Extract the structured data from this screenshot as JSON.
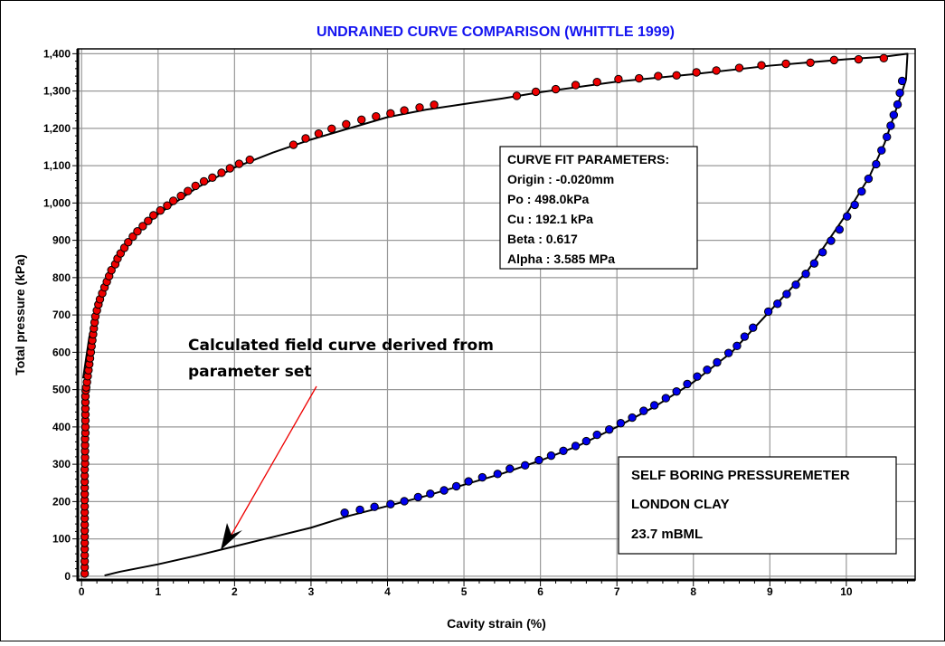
{
  "chart_data": {
    "type": "scatter",
    "title": "UNDRAINED CURVE COMPARISON (WHITTLE 1999)",
    "xlabel": "Cavity strain (%)",
    "ylabel": "Total pressure (kPa)",
    "xlim": [
      -0.05,
      10.9
    ],
    "ylim": [
      -10,
      1413
    ],
    "grid": true,
    "x_ticks": [
      0,
      1,
      2,
      3,
      4,
      5,
      6,
      7,
      8,
      9,
      10
    ],
    "x_tick_labels": [
      "0",
      "1",
      "2",
      "3",
      "4",
      "5",
      "6",
      "7",
      "8",
      "9",
      "10"
    ],
    "y_ticks": [
      0,
      100,
      200,
      300,
      400,
      500,
      600,
      700,
      800,
      900,
      1000,
      1100,
      1200,
      1300,
      1400
    ],
    "y_tick_labels": [
      "0",
      "100",
      "200",
      "300",
      "400",
      "500",
      "600",
      "700",
      "800",
      "900",
      "1,000",
      "1,100",
      "1,200",
      "1,300",
      "1,400"
    ],
    "colors": {
      "title": "#1414f0",
      "loading": "#ee0000",
      "unloading": "#0000ee",
      "curve": "#000000",
      "arrow": "#ee0000"
    },
    "series": [
      {
        "marker": "circle",
        "color": "#ee0000",
        "points": [
          [
            0.04,
            7
          ],
          [
            0.04,
            24
          ],
          [
            0.04,
            40
          ],
          [
            0.04,
            56
          ],
          [
            0.04,
            73
          ],
          [
            0.04,
            89
          ],
          [
            0.04,
            106
          ],
          [
            0.04,
            122
          ],
          [
            0.04,
            138
          ],
          [
            0.04,
            155
          ],
          [
            0.04,
            171
          ],
          [
            0.04,
            187
          ],
          [
            0.04,
            204
          ],
          [
            0.04,
            220
          ],
          [
            0.04,
            237
          ],
          [
            0.04,
            253
          ],
          [
            0.04,
            269
          ],
          [
            0.04,
            286
          ],
          [
            0.045,
            302
          ],
          [
            0.045,
            318
          ],
          [
            0.045,
            335
          ],
          [
            0.045,
            351
          ],
          [
            0.045,
            368
          ],
          [
            0.05,
            384
          ],
          [
            0.05,
            400
          ],
          [
            0.05,
            417
          ],
          [
            0.05,
            433
          ],
          [
            0.05,
            449
          ],
          [
            0.05,
            466
          ],
          [
            0.05,
            482
          ],
          [
            0.055,
            498
          ],
          [
            0.06,
            506
          ],
          [
            0.07,
            520
          ],
          [
            0.08,
            536
          ],
          [
            0.09,
            552
          ],
          [
            0.1,
            568
          ],
          [
            0.11,
            584
          ],
          [
            0.12,
            600
          ],
          [
            0.13,
            616
          ],
          [
            0.14,
            632
          ],
          [
            0.15,
            648
          ],
          [
            0.16,
            664
          ],
          [
            0.17,
            680
          ],
          [
            0.18,
            696
          ],
          [
            0.2,
            712
          ],
          [
            0.22,
            728
          ],
          [
            0.24,
            742
          ],
          [
            0.27,
            758
          ],
          [
            0.3,
            774
          ],
          [
            0.33,
            789
          ],
          [
            0.36,
            804
          ],
          [
            0.39,
            820
          ],
          [
            0.44,
            836
          ],
          [
            0.47,
            851
          ],
          [
            0.51,
            865
          ],
          [
            0.56,
            880
          ],
          [
            0.61,
            895
          ],
          [
            0.67,
            910
          ],
          [
            0.73,
            924
          ],
          [
            0.8,
            938
          ],
          [
            0.87,
            952
          ],
          [
            0.94,
            967
          ],
          [
            1.03,
            980
          ],
          [
            1.12,
            993
          ],
          [
            1.2,
            1006
          ],
          [
            1.3,
            1019
          ],
          [
            1.39,
            1032
          ],
          [
            1.49,
            1046
          ],
          [
            1.6,
            1058
          ],
          [
            1.71,
            1068
          ],
          [
            1.83,
            1081
          ],
          [
            1.94,
            1093
          ],
          [
            2.06,
            1105
          ],
          [
            2.2,
            1116
          ],
          [
            2.77,
            1156
          ],
          [
            2.93,
            1173
          ],
          [
            3.1,
            1186
          ],
          [
            3.27,
            1199
          ],
          [
            3.46,
            1211
          ],
          [
            3.66,
            1223
          ],
          [
            3.85,
            1232
          ],
          [
            4.04,
            1240
          ],
          [
            4.22,
            1248
          ],
          [
            4.42,
            1256
          ],
          [
            4.61,
            1263
          ],
          [
            5.69,
            1287
          ],
          [
            5.94,
            1298
          ],
          [
            6.2,
            1305
          ],
          [
            6.46,
            1316
          ],
          [
            6.74,
            1324
          ],
          [
            7.02,
            1332
          ],
          [
            7.29,
            1334
          ],
          [
            7.54,
            1340
          ],
          [
            7.78,
            1342
          ],
          [
            8.04,
            1350
          ],
          [
            8.3,
            1355
          ],
          [
            8.6,
            1362
          ],
          [
            8.89,
            1369
          ],
          [
            9.21,
            1373
          ],
          [
            9.53,
            1376
          ],
          [
            9.84,
            1383
          ],
          [
            10.16,
            1385
          ],
          [
            10.49,
            1388
          ]
        ]
      },
      {
        "marker": "circle",
        "color": "#0000ee",
        "points": [
          [
            3.44,
            170
          ],
          [
            3.64,
            178
          ],
          [
            3.83,
            186
          ],
          [
            4.04,
            193
          ],
          [
            4.22,
            201
          ],
          [
            4.4,
            212
          ],
          [
            4.56,
            221
          ],
          [
            4.74,
            230
          ],
          [
            4.9,
            241
          ],
          [
            5.06,
            254
          ],
          [
            5.24,
            265
          ],
          [
            5.44,
            274
          ],
          [
            5.6,
            288
          ],
          [
            5.8,
            297
          ],
          [
            5.98,
            311
          ],
          [
            6.14,
            323
          ],
          [
            6.3,
            336
          ],
          [
            6.46,
            349
          ],
          [
            6.6,
            362
          ],
          [
            6.74,
            379
          ],
          [
            6.9,
            393
          ],
          [
            7.05,
            410
          ],
          [
            7.2,
            425
          ],
          [
            7.35,
            443
          ],
          [
            7.49,
            458
          ],
          [
            7.64,
            477
          ],
          [
            7.78,
            495
          ],
          [
            7.92,
            515
          ],
          [
            8.05,
            535
          ],
          [
            8.18,
            553
          ],
          [
            8.31,
            573
          ],
          [
            8.46,
            598
          ],
          [
            8.57,
            617
          ],
          [
            8.67,
            642
          ],
          [
            8.78,
            666
          ],
          [
            8.98,
            709
          ],
          [
            9.1,
            730
          ],
          [
            9.22,
            756
          ],
          [
            9.34,
            781
          ],
          [
            9.47,
            810
          ],
          [
            9.58,
            838
          ],
          [
            9.69,
            868
          ],
          [
            9.8,
            899
          ],
          [
            9.91,
            929
          ],
          [
            10.01,
            964
          ],
          [
            10.11,
            995
          ],
          [
            10.2,
            1031
          ],
          [
            10.29,
            1065
          ],
          [
            10.39,
            1104
          ],
          [
            10.46,
            1141
          ],
          [
            10.53,
            1177
          ],
          [
            10.58,
            1207
          ],
          [
            10.62,
            1236
          ],
          [
            10.67,
            1264
          ],
          [
            10.7,
            1295
          ],
          [
            10.73,
            1327
          ]
        ]
      },
      {
        "type": "line",
        "color": "#000000",
        "points": [
          [
            0.02,
            530
          ],
          [
            0.1,
            640
          ],
          [
            0.2,
            720
          ],
          [
            0.3,
            780
          ],
          [
            0.5,
            860
          ],
          [
            0.75,
            925
          ],
          [
            1,
            970
          ],
          [
            1.5,
            1040
          ],
          [
            2,
            1095
          ],
          [
            2.5,
            1135
          ],
          [
            3,
            1170
          ],
          [
            3.5,
            1200
          ],
          [
            4,
            1230
          ],
          [
            4.5,
            1250
          ],
          [
            5,
            1265
          ],
          [
            5.5,
            1280
          ],
          [
            6,
            1297
          ],
          [
            7,
            1325
          ],
          [
            8,
            1345
          ],
          [
            9,
            1368
          ],
          [
            10,
            1385
          ],
          [
            10.5,
            1392
          ],
          [
            10.8,
            1400
          ],
          [
            10.78,
            1330
          ],
          [
            10.7,
            1280
          ],
          [
            10.6,
            1220
          ],
          [
            10.5,
            1160
          ],
          [
            10.3,
            1070
          ],
          [
            10,
            970
          ],
          [
            9.5,
            820
          ],
          [
            9,
            710
          ],
          [
            8.5,
            600
          ],
          [
            8,
            520
          ],
          [
            7.5,
            455
          ],
          [
            7,
            400
          ],
          [
            6.5,
            350
          ],
          [
            6,
            310
          ],
          [
            5.5,
            275
          ],
          [
            5,
            245
          ],
          [
            4.5,
            215
          ],
          [
            4,
            188
          ],
          [
            3.5,
            162
          ],
          [
            3,
            130
          ],
          [
            2.5,
            105
          ],
          [
            2,
            80
          ],
          [
            1.5,
            55
          ],
          [
            1,
            32
          ],
          [
            0.5,
            12
          ],
          [
            0.3,
            2
          ]
        ]
      }
    ],
    "annotations": {
      "arrow_text_line1": "Calculated field curve derived from",
      "arrow_text_line2": "parameter set",
      "arrow_target": [
        1.85,
        72
      ],
      "params_box": {
        "title": "CURVE FIT PARAMETERS:",
        "lines": [
          "Origin : -0.020mm",
          "Po : 498.0kPa",
          "Cu : 192.1 kPa",
          "Beta : 0.617",
          "Alpha : 3.585 MPa"
        ]
      },
      "info_box": {
        "lines": [
          "SELF BORING PRESSUREMETER",
          "LONDON CLAY",
          "23.7 mBML"
        ]
      }
    }
  }
}
